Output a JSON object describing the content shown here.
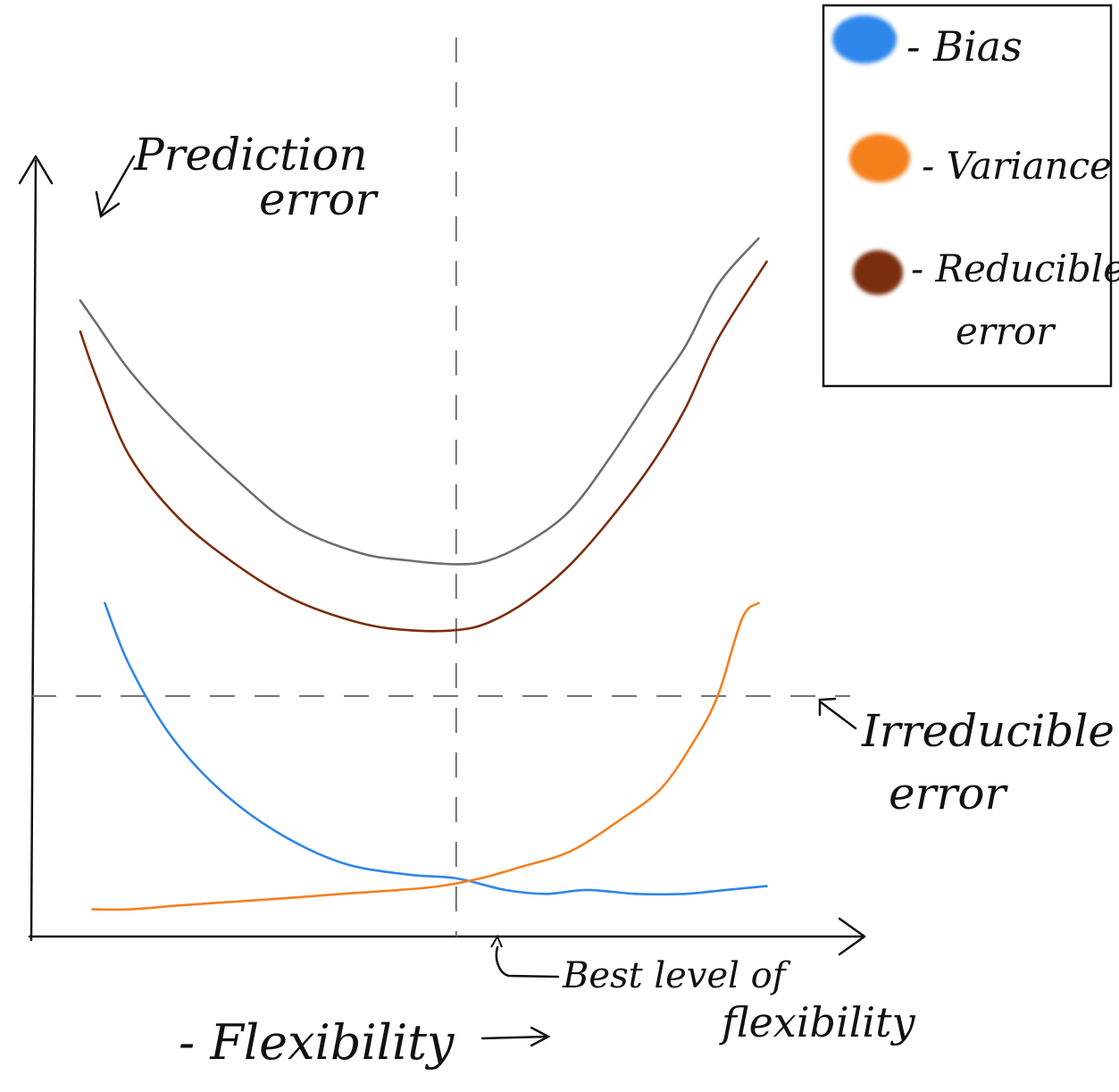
{
  "chart_data": {
    "type": "line",
    "title": "",
    "xlabel": "- Flexibility -->",
    "ylabel": "Prediction error",
    "xlim": [
      0,
      10
    ],
    "ylim": [
      0,
      10
    ],
    "series": [
      {
        "name": "Prediction error",
        "color": "#6e6e6e",
        "x": [
          0.6,
          0.8,
          1.2,
          1.8,
          2.5,
          3.2,
          4.0,
          4.6,
          5.2,
          5.6,
          6.1,
          6.6,
          7.1,
          7.6,
          8.0,
          8.4,
          8.9
        ],
        "y": [
          8.2,
          7.9,
          7.3,
          6.6,
          5.9,
          5.3,
          4.95,
          4.85,
          4.8,
          4.85,
          5.1,
          5.5,
          6.2,
          7.0,
          7.6,
          8.4,
          9.0
        ]
      },
      {
        "name": "Reducible error",
        "color": "#7a2e0e",
        "x": [
          0.6,
          0.8,
          1.2,
          1.8,
          2.5,
          3.2,
          4.0,
          4.6,
          5.2,
          5.6,
          6.1,
          6.6,
          7.1,
          7.6,
          8.0,
          8.4,
          9.0
        ],
        "y": [
          7.8,
          7.2,
          6.2,
          5.4,
          4.8,
          4.35,
          4.05,
          3.95,
          3.95,
          4.05,
          4.35,
          4.8,
          5.4,
          6.1,
          6.8,
          7.7,
          8.7
        ]
      },
      {
        "name": "Bias",
        "color": "#2f86ea",
        "x": [
          0.9,
          1.2,
          1.7,
          2.3,
          3.0,
          3.8,
          4.6,
          5.2,
          5.8,
          6.3,
          6.8,
          7.4,
          8.0,
          8.5,
          9.0
        ],
        "y": [
          4.3,
          3.5,
          2.6,
          1.9,
          1.35,
          0.95,
          0.8,
          0.75,
          0.6,
          0.55,
          0.6,
          0.55,
          0.55,
          0.6,
          0.65
        ]
      },
      {
        "name": "Variance",
        "color": "#f4801f",
        "x": [
          0.75,
          1.2,
          1.8,
          2.5,
          3.2,
          3.8,
          4.5,
          5.0,
          5.5,
          6.0,
          6.6,
          7.2,
          7.7,
          8.1,
          8.4,
          8.7,
          8.9
        ],
        "y": [
          0.35,
          0.35,
          0.4,
          0.45,
          0.5,
          0.55,
          0.6,
          0.65,
          0.75,
          0.9,
          1.1,
          1.5,
          1.9,
          2.5,
          3.1,
          4.1,
          4.3
        ]
      }
    ],
    "reference_lines": [
      {
        "orientation": "horizontal",
        "y": 3.1,
        "label": "Irreducible error",
        "style": "dashed",
        "color": "#6e6e6e"
      },
      {
        "orientation": "vertical",
        "x": 5.2,
        "label": "Best level of flexibility",
        "style": "dashed",
        "color": "#6e6e6e"
      }
    ],
    "legend": {
      "placement": "top-right",
      "entries": [
        {
          "label": "- Bias",
          "color": "#2f86ea"
        },
        {
          "label": "- Variance",
          "color": "#f4801f"
        },
        {
          "label": "- Reducible",
          "label2": "error",
          "color": "#7a2e0e"
        }
      ]
    },
    "annotations": {
      "prediction_error_line1": "Prediction",
      "prediction_error_line2": "error",
      "irreducible_line1": "Irreducible",
      "irreducible_line2": "error",
      "best_line1": "Best level of",
      "best_line2": "flexibility",
      "flexibility": "- Flexibility"
    }
  }
}
